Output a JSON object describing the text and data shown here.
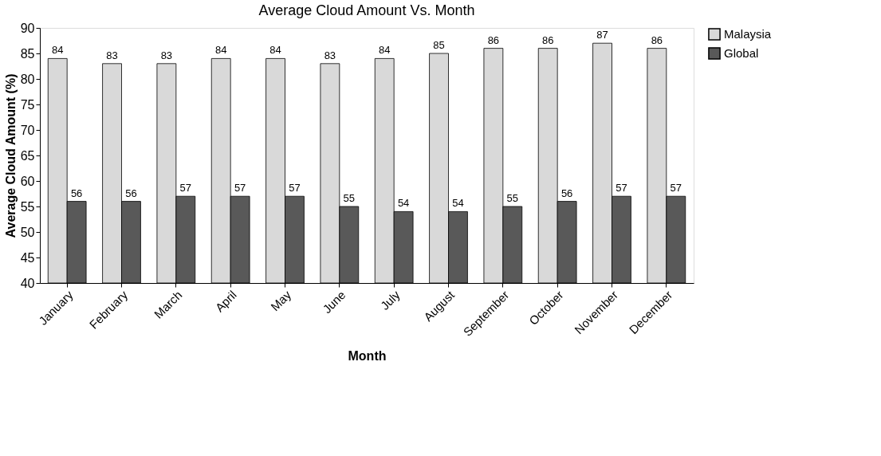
{
  "chart_data": {
    "type": "bar",
    "title": "Average Cloud Amount Vs. Month",
    "xlabel": "Month",
    "ylabel": "Average Cloud Amount (%)",
    "categories": [
      "January",
      "February",
      "March",
      "April",
      "May",
      "June",
      "July",
      "August",
      "September",
      "October",
      "November",
      "December"
    ],
    "series": [
      {
        "name": "Malaysia",
        "color": "#d9d9d9",
        "values": [
          84,
          83,
          83,
          84,
          84,
          83,
          84,
          85,
          86,
          86,
          87,
          86
        ]
      },
      {
        "name": "Global",
        "color": "#595959",
        "values": [
          56,
          56,
          57,
          57,
          57,
          55,
          54,
          54,
          55,
          56,
          57,
          57
        ]
      }
    ],
    "ylim": [
      40,
      90
    ],
    "yticks": [
      40,
      45,
      50,
      55,
      60,
      65,
      70,
      75,
      80,
      85,
      90
    ],
    "grid": false,
    "legend": "right",
    "data_labels": true
  }
}
